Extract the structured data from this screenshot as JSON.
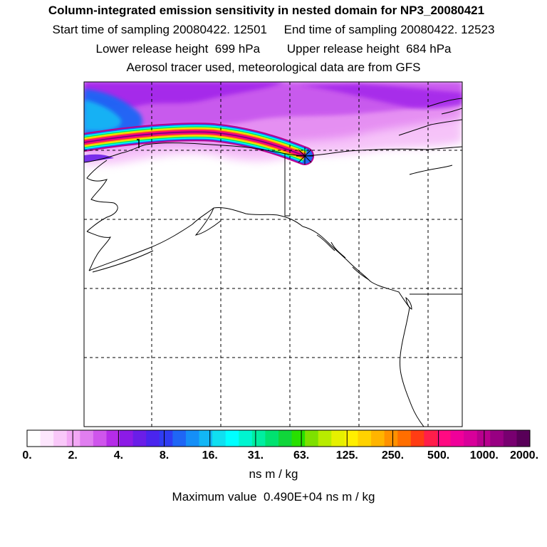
{
  "header": {
    "title": "Column-integrated emission sensitivity in nested domain for NP3_20080421",
    "sampling_line": "Start time of sampling 20080422. 12501     End time of sampling 20080422. 12523",
    "release_line": "Lower release height  699 hPa        Upper release height  684 hPa",
    "tracer_line": "Aerosol tracer used, meteorological data are from GFS"
  },
  "colorbar": {
    "tick_labels": [
      "0.",
      "2.",
      "4.",
      "8.",
      "16.",
      "31.",
      "63.",
      "125.",
      "250.",
      "500.",
      "1000.",
      "2000."
    ],
    "units": "ns m / kg",
    "colors": [
      "#ffffff",
      "#fde6fd",
      "#f9c8f9",
      "#f3a8f5",
      "#e07ef0",
      "#cf55ec",
      "#b52ce8",
      "#8c1be6",
      "#6a1ee8",
      "#4a25ee",
      "#2f3cf3",
      "#1f66f5",
      "#158ff7",
      "#12b6f5",
      "#10dff0",
      "#00ffff",
      "#00f5d0",
      "#00eea0",
      "#00e270",
      "#10d63a",
      "#28e000",
      "#7ee000",
      "#b8ec00",
      "#e6f000",
      "#ffef00",
      "#ffd200",
      "#ffb400",
      "#ff9100",
      "#ff6e00",
      "#ff3c14",
      "#ff1e4a",
      "#ff0a82",
      "#f0009a",
      "#d8009a",
      "#b8008e",
      "#980082",
      "#780070",
      "#580058"
    ]
  },
  "footer": {
    "max_value_line": "Maximum value  0.490E+04 ns m / kg"
  }
}
